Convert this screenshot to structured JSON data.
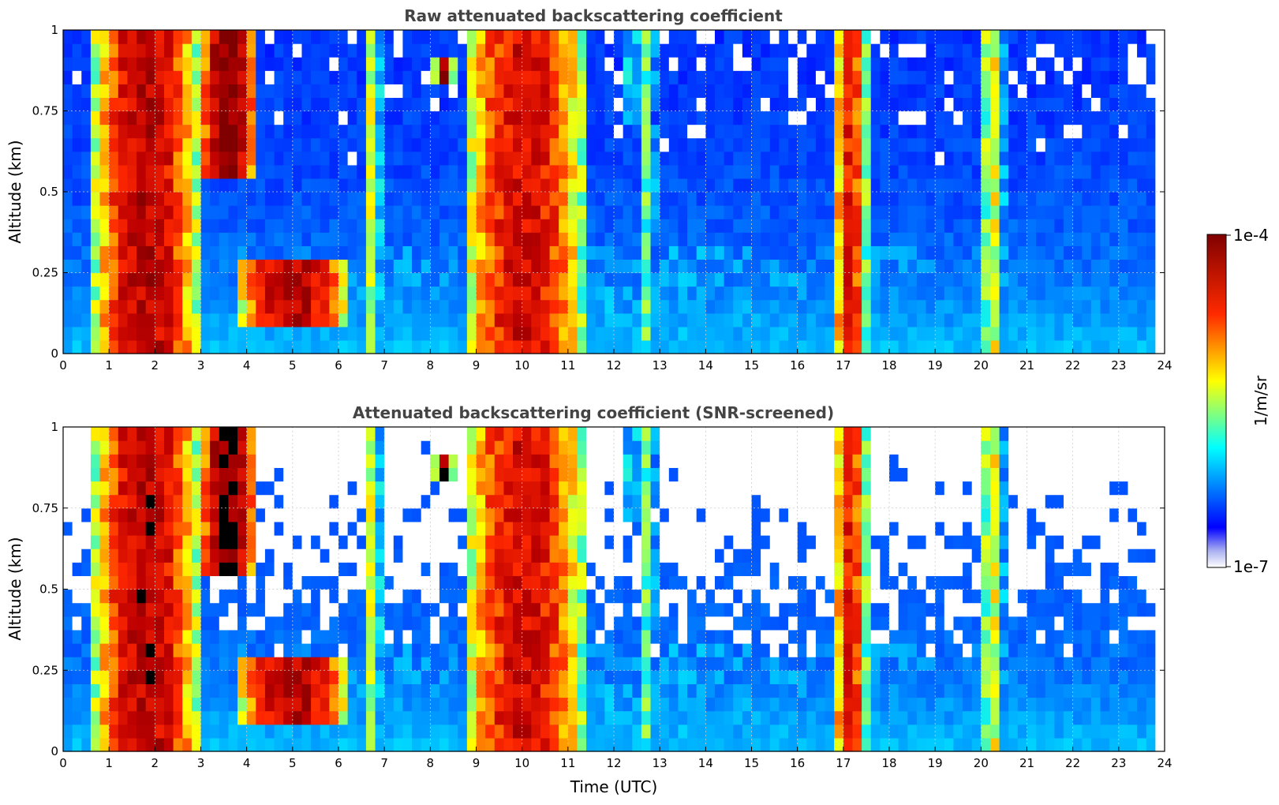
{
  "chart_data": [
    {
      "type": "heatmap",
      "title": "Raw attenuated backscattering coefficient",
      "xlabel": "",
      "ylabel": "Altitude (km)",
      "xlim": [
        0,
        24
      ],
      "ylim": [
        0,
        1
      ],
      "xticks": [
        "0",
        "1",
        "2",
        "3",
        "4",
        "5",
        "6",
        "7",
        "8",
        "9",
        "10",
        "11",
        "12",
        "13",
        "14",
        "15",
        "16",
        "17",
        "18",
        "19",
        "20",
        "21",
        "22",
        "23",
        "24"
      ],
      "yticks": [
        "0",
        "0.25",
        "0.5",
        "0.75",
        "1"
      ],
      "screened": false,
      "grid": true,
      "data_end_time": 23.8,
      "features": [
        {
          "name": "bl",
          "t": [
            0,
            23.8
          ],
          "alt": [
            0,
            0.35
          ],
          "level": 0.25
        },
        {
          "name": "cloud1",
          "t": [
            0.7,
            2.9
          ],
          "alt": [
            0,
            1
          ],
          "level": 0.9
        },
        {
          "name": "cloud2",
          "t": [
            3.0,
            4.2
          ],
          "alt": [
            0.55,
            1
          ],
          "level": 1.0
        },
        {
          "name": "aerosol",
          "t": [
            3.8,
            6.2
          ],
          "alt": [
            0.1,
            0.3
          ],
          "level": 0.9
        },
        {
          "name": "stripe1",
          "t": [
            6.6,
            6.9
          ],
          "alt": [
            0,
            1
          ],
          "level": 0.55
        },
        {
          "name": "blob",
          "t": [
            8.1,
            8.5
          ],
          "alt": [
            0.83,
            0.92
          ],
          "level": 0.95
        },
        {
          "name": "cloud3",
          "t": [
            8.8,
            11.3
          ],
          "alt": [
            0,
            1
          ],
          "level": 0.85
        },
        {
          "name": "stripe2",
          "t": [
            12.3,
            12.5
          ],
          "alt": [
            0.7,
            1
          ],
          "level": 0.55
        },
        {
          "name": "stripe3",
          "t": [
            12.6,
            12.9
          ],
          "alt": [
            0,
            1
          ],
          "level": 0.45
        },
        {
          "name": "cloud4",
          "t": [
            16.8,
            17.5
          ],
          "alt": [
            0,
            1
          ],
          "level": 0.8
        },
        {
          "name": "cloud5",
          "t": [
            20.0,
            20.5
          ],
          "alt": [
            0,
            1
          ],
          "level": 0.55
        }
      ]
    },
    {
      "type": "heatmap",
      "title": "Attenuated backscattering coefficient (SNR-screened)",
      "xlabel": "Time (UTC)",
      "ylabel": "Altitude (km)",
      "xlim": [
        0,
        24
      ],
      "ylim": [
        0,
        1
      ],
      "xticks": [
        "0",
        "1",
        "2",
        "3",
        "4",
        "5",
        "6",
        "7",
        "8",
        "9",
        "10",
        "11",
        "12",
        "13",
        "14",
        "15",
        "16",
        "17",
        "18",
        "19",
        "20",
        "21",
        "22",
        "23",
        "24"
      ],
      "yticks": [
        "0",
        "0.25",
        "0.5",
        "0.75",
        "1"
      ],
      "screened": true,
      "grid": true,
      "data_end_time": 23.8,
      "features": [
        {
          "name": "bl",
          "t": [
            0,
            23.8
          ],
          "alt": [
            0,
            0.35
          ],
          "level": 0.25
        },
        {
          "name": "cloud1",
          "t": [
            0.7,
            2.9
          ],
          "alt": [
            0,
            1
          ],
          "level": 0.9
        },
        {
          "name": "cloud2",
          "t": [
            3.0,
            4.2
          ],
          "alt": [
            0.55,
            1
          ],
          "level": 1.0
        },
        {
          "name": "aerosol",
          "t": [
            3.8,
            6.2
          ],
          "alt": [
            0.1,
            0.3
          ],
          "level": 0.9
        },
        {
          "name": "stripe1",
          "t": [
            6.6,
            6.9
          ],
          "alt": [
            0,
            1
          ],
          "level": 0.55
        },
        {
          "name": "blob",
          "t": [
            8.1,
            8.5
          ],
          "alt": [
            0.83,
            0.92
          ],
          "level": 0.95
        },
        {
          "name": "cloud3",
          "t": [
            8.8,
            11.3
          ],
          "alt": [
            0,
            1
          ],
          "level": 0.85
        },
        {
          "name": "stripe2",
          "t": [
            12.3,
            12.5
          ],
          "alt": [
            0.7,
            1
          ],
          "level": 0.55
        },
        {
          "name": "stripe3",
          "t": [
            12.6,
            12.9
          ],
          "alt": [
            0,
            1
          ],
          "level": 0.45
        },
        {
          "name": "cloud4",
          "t": [
            16.8,
            17.5
          ],
          "alt": [
            0,
            1
          ],
          "level": 0.8
        },
        {
          "name": "cloud5",
          "t": [
            20.0,
            20.5
          ],
          "alt": [
            0,
            1
          ],
          "level": 0.55
        }
      ]
    }
  ],
  "colorbar": {
    "label": "1/m/sr",
    "max_label": "1e-4",
    "min_label": "1e-7",
    "colormap": "jet",
    "scale": "log"
  }
}
